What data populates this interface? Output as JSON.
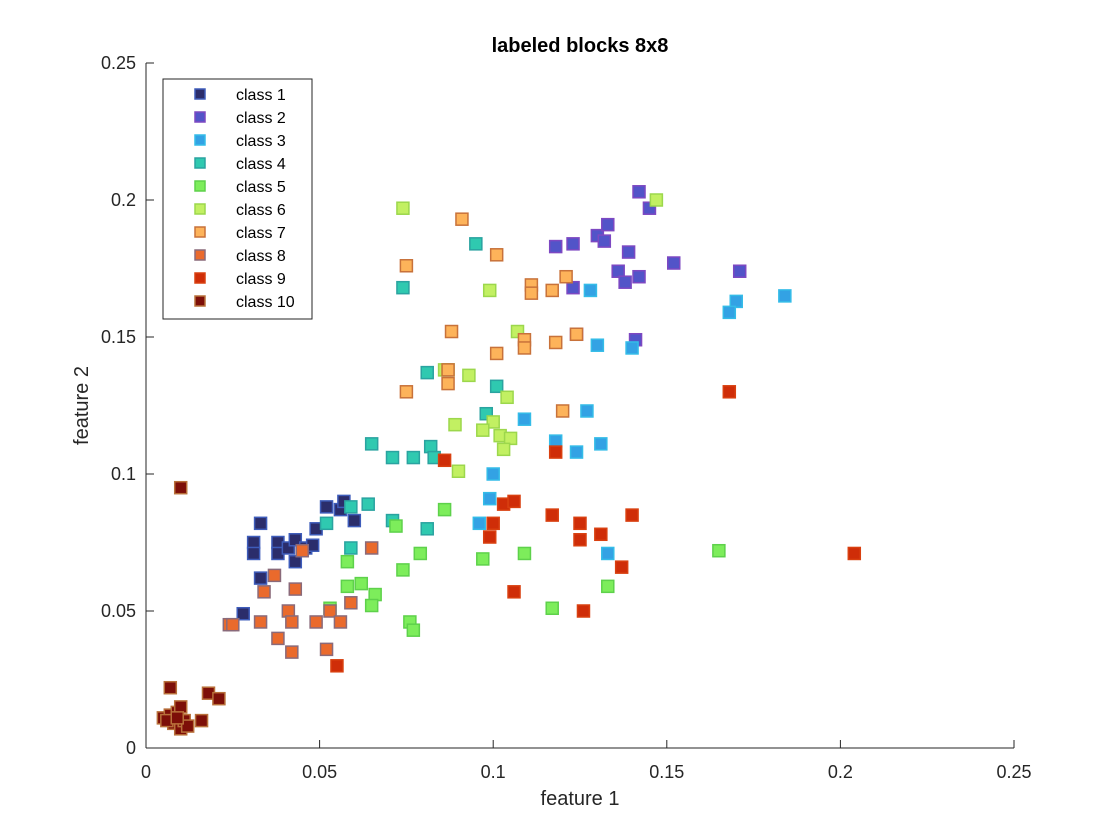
{
  "chart_data": {
    "type": "scatter",
    "title": "labeled blocks 8x8",
    "xlabel": "feature 1",
    "ylabel": "feature 2",
    "xlim": [
      0,
      0.25
    ],
    "ylim": [
      0,
      0.25
    ],
    "xticks": [
      0,
      0.05,
      0.1,
      0.15,
      0.2,
      0.25
    ],
    "yticks": [
      0,
      0.05,
      0.1,
      0.15,
      0.2,
      0.25
    ],
    "xtick_labels": [
      "0",
      "0.05",
      "0.1",
      "0.15",
      "0.2",
      "0.25"
    ],
    "ytick_labels": [
      "0",
      "0.05",
      "0.1",
      "0.15",
      "0.2",
      "0.25"
    ],
    "grid": false,
    "box": false,
    "legend_position": "top-left",
    "series": [
      {
        "name": "class 1",
        "color": "#2b2d6b",
        "edge": "#3e5cba",
        "points": [
          [
            0.031,
            0.075
          ],
          [
            0.031,
            0.071
          ],
          [
            0.033,
            0.082
          ],
          [
            0.033,
            0.062
          ],
          [
            0.038,
            0.075
          ],
          [
            0.038,
            0.071
          ],
          [
            0.041,
            0.073
          ],
          [
            0.043,
            0.076
          ],
          [
            0.043,
            0.068
          ],
          [
            0.046,
            0.073
          ],
          [
            0.048,
            0.074
          ],
          [
            0.049,
            0.08
          ],
          [
            0.052,
            0.088
          ],
          [
            0.056,
            0.087
          ],
          [
            0.057,
            0.09
          ],
          [
            0.06,
            0.083
          ],
          [
            0.028,
            0.049
          ]
        ]
      },
      {
        "name": "class 2",
        "color": "#5254c8",
        "edge": "#7d48c2",
        "points": [
          [
            0.118,
            0.183
          ],
          [
            0.123,
            0.184
          ],
          [
            0.13,
            0.187
          ],
          [
            0.132,
            0.185
          ],
          [
            0.133,
            0.191
          ],
          [
            0.139,
            0.181
          ],
          [
            0.142,
            0.203
          ],
          [
            0.145,
            0.197
          ],
          [
            0.136,
            0.174
          ],
          [
            0.138,
            0.17
          ],
          [
            0.142,
            0.172
          ],
          [
            0.152,
            0.177
          ],
          [
            0.171,
            0.174
          ],
          [
            0.141,
            0.149
          ],
          [
            0.124,
            0.151
          ],
          [
            0.123,
            0.168
          ]
        ]
      },
      {
        "name": "class 3",
        "color": "#33a2e4",
        "edge": "#34bce8",
        "points": [
          [
            0.184,
            0.165
          ],
          [
            0.17,
            0.163
          ],
          [
            0.168,
            0.159
          ],
          [
            0.128,
            0.167
          ],
          [
            0.13,
            0.147
          ],
          [
            0.14,
            0.146
          ],
          [
            0.127,
            0.123
          ],
          [
            0.109,
            0.12
          ],
          [
            0.118,
            0.112
          ],
          [
            0.131,
            0.111
          ],
          [
            0.124,
            0.108
          ],
          [
            0.1,
            0.1
          ],
          [
            0.099,
            0.091
          ],
          [
            0.096,
            0.082
          ],
          [
            0.133,
            0.071
          ]
        ]
      },
      {
        "name": "class 4",
        "color": "#2fc9b0",
        "edge": "#2aa3a0",
        "points": [
          [
            0.074,
            0.168
          ],
          [
            0.095,
            0.184
          ],
          [
            0.081,
            0.137
          ],
          [
            0.101,
            0.132
          ],
          [
            0.098,
            0.122
          ],
          [
            0.065,
            0.111
          ],
          [
            0.071,
            0.106
          ],
          [
            0.077,
            0.106
          ],
          [
            0.082,
            0.11
          ],
          [
            0.083,
            0.106
          ],
          [
            0.052,
            0.082
          ],
          [
            0.059,
            0.088
          ],
          [
            0.064,
            0.089
          ],
          [
            0.059,
            0.073
          ],
          [
            0.071,
            0.083
          ],
          [
            0.081,
            0.08
          ]
        ]
      },
      {
        "name": "class 5",
        "color": "#7ded5b",
        "edge": "#5ed14b",
        "points": [
          [
            0.086,
            0.087
          ],
          [
            0.079,
            0.071
          ],
          [
            0.074,
            0.065
          ],
          [
            0.058,
            0.068
          ],
          [
            0.062,
            0.06
          ],
          [
            0.058,
            0.059
          ],
          [
            0.066,
            0.056
          ],
          [
            0.053,
            0.051
          ],
          [
            0.065,
            0.052
          ],
          [
            0.076,
            0.046
          ],
          [
            0.077,
            0.043
          ],
          [
            0.097,
            0.069
          ],
          [
            0.109,
            0.071
          ],
          [
            0.117,
            0.051
          ],
          [
            0.133,
            0.059
          ],
          [
            0.165,
            0.072
          ],
          [
            0.072,
            0.081
          ]
        ]
      },
      {
        "name": "class 6",
        "color": "#c2f062",
        "edge": "#9cd74c",
        "points": [
          [
            0.074,
            0.197
          ],
          [
            0.147,
            0.2
          ],
          [
            0.099,
            0.167
          ],
          [
            0.107,
            0.152
          ],
          [
            0.086,
            0.138
          ],
          [
            0.087,
            0.138
          ],
          [
            0.093,
            0.136
          ],
          [
            0.104,
            0.128
          ],
          [
            0.089,
            0.118
          ],
          [
            0.1,
            0.119
          ],
          [
            0.097,
            0.116
          ],
          [
            0.102,
            0.114
          ],
          [
            0.105,
            0.113
          ],
          [
            0.103,
            0.109
          ],
          [
            0.09,
            0.101
          ]
        ]
      },
      {
        "name": "class 7",
        "color": "#fdb35a",
        "edge": "#c8723a",
        "points": [
          [
            0.091,
            0.193
          ],
          [
            0.101,
            0.18
          ],
          [
            0.075,
            0.176
          ],
          [
            0.111,
            0.169
          ],
          [
            0.111,
            0.166
          ],
          [
            0.117,
            0.167
          ],
          [
            0.121,
            0.172
          ],
          [
            0.088,
            0.152
          ],
          [
            0.109,
            0.149
          ],
          [
            0.109,
            0.146
          ],
          [
            0.118,
            0.148
          ],
          [
            0.124,
            0.151
          ],
          [
            0.101,
            0.144
          ],
          [
            0.087,
            0.138
          ],
          [
            0.087,
            0.133
          ],
          [
            0.075,
            0.13
          ],
          [
            0.12,
            0.123
          ]
        ]
      },
      {
        "name": "class 8",
        "color": "#ea6a2c",
        "edge": "#8a6a7a",
        "points": [
          [
            0.024,
            0.045
          ],
          [
            0.025,
            0.045
          ],
          [
            0.033,
            0.046
          ],
          [
            0.034,
            0.057
          ],
          [
            0.037,
            0.063
          ],
          [
            0.038,
            0.04
          ],
          [
            0.041,
            0.05
          ],
          [
            0.042,
            0.046
          ],
          [
            0.043,
            0.058
          ],
          [
            0.045,
            0.072
          ],
          [
            0.042,
            0.035
          ],
          [
            0.049,
            0.046
          ],
          [
            0.053,
            0.05
          ],
          [
            0.056,
            0.046
          ],
          [
            0.059,
            0.053
          ],
          [
            0.052,
            0.036
          ],
          [
            0.065,
            0.073
          ]
        ]
      },
      {
        "name": "class 9",
        "color": "#cf2d08",
        "edge": "#d94010",
        "points": [
          [
            0.168,
            0.13
          ],
          [
            0.118,
            0.108
          ],
          [
            0.086,
            0.105
          ],
          [
            0.1,
            0.082
          ],
          [
            0.103,
            0.089
          ],
          [
            0.106,
            0.09
          ],
          [
            0.099,
            0.077
          ],
          [
            0.117,
            0.085
          ],
          [
            0.125,
            0.082
          ],
          [
            0.125,
            0.076
          ],
          [
            0.131,
            0.078
          ],
          [
            0.14,
            0.085
          ],
          [
            0.137,
            0.066
          ],
          [
            0.204,
            0.071
          ],
          [
            0.106,
            0.057
          ],
          [
            0.126,
            0.05
          ],
          [
            0.055,
            0.03
          ]
        ]
      },
      {
        "name": "class 10",
        "color": "#7d0f08",
        "edge": "#b8703a",
        "points": [
          [
            0.01,
            0.095
          ],
          [
            0.007,
            0.022
          ],
          [
            0.018,
            0.02
          ],
          [
            0.021,
            0.018
          ],
          [
            0.005,
            0.011
          ],
          [
            0.007,
            0.012
          ],
          [
            0.009,
            0.013
          ],
          [
            0.01,
            0.015
          ],
          [
            0.008,
            0.009
          ],
          [
            0.01,
            0.007
          ],
          [
            0.011,
            0.01
          ],
          [
            0.012,
            0.008
          ],
          [
            0.016,
            0.01
          ],
          [
            0.006,
            0.01
          ],
          [
            0.009,
            0.011
          ]
        ]
      }
    ]
  }
}
